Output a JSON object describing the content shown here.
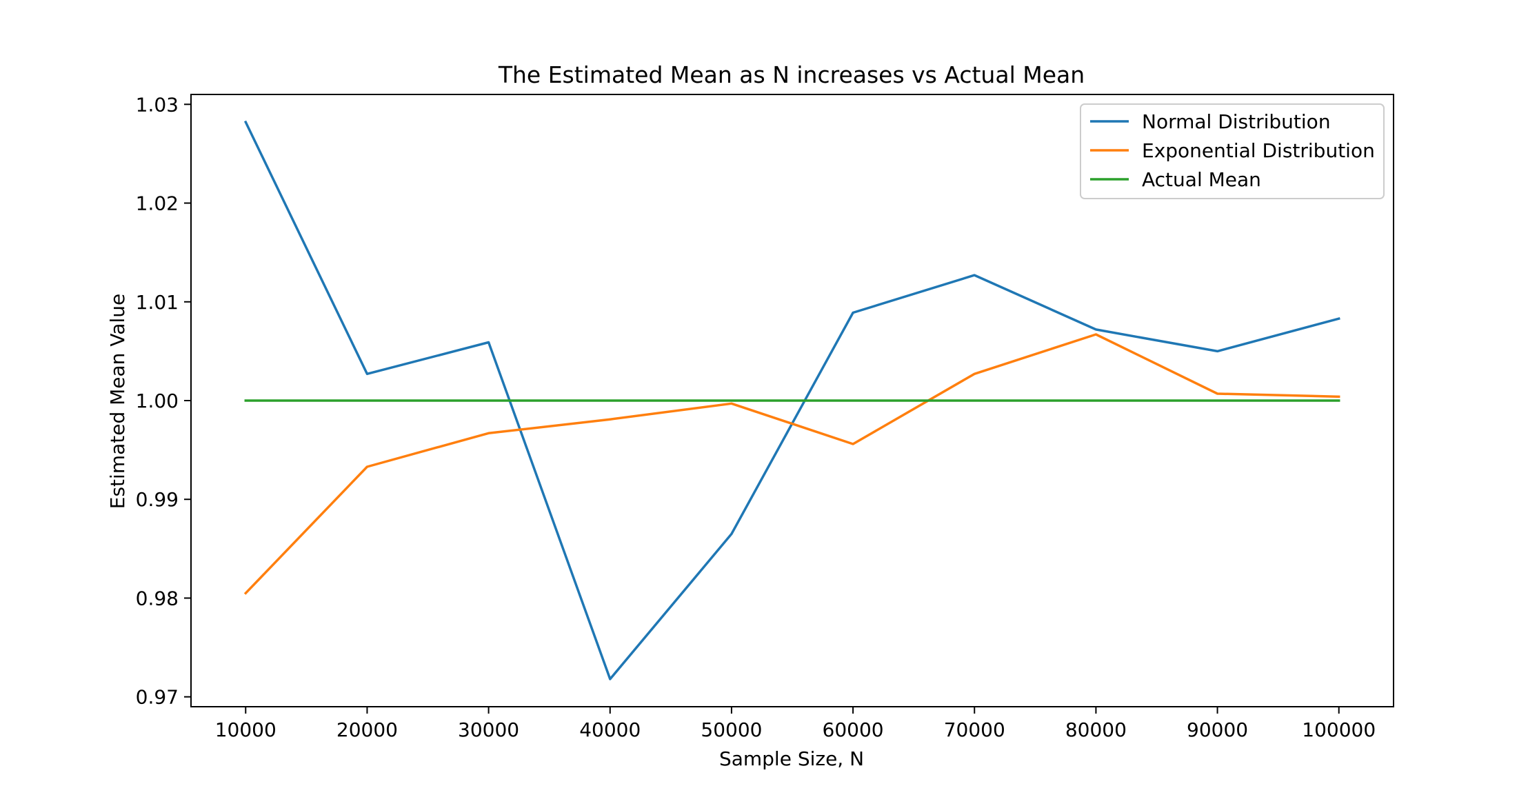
{
  "chart_data": {
    "type": "line",
    "title": "The Estimated Mean as N increases vs Actual Mean",
    "xlabel": "Sample Size, N",
    "ylabel": "Estimated Mean Value",
    "x": [
      10000,
      20000,
      30000,
      40000,
      50000,
      60000,
      70000,
      80000,
      90000,
      100000
    ],
    "x_tick_labels": [
      "10000",
      "20000",
      "30000",
      "40000",
      "50000",
      "60000",
      "70000",
      "80000",
      "90000",
      "100000"
    ],
    "y_ticks": [
      0.97,
      0.98,
      0.99,
      1.0,
      1.01,
      1.02,
      1.03
    ],
    "y_tick_labels": [
      "0.97",
      "0.98",
      "0.99",
      "1.00",
      "1.01",
      "1.02",
      "1.03"
    ],
    "xlim": [
      5500,
      104500
    ],
    "ylim": [
      0.969,
      1.031
    ],
    "grid": false,
    "legend_position": "top-right",
    "series": [
      {
        "name": "Normal Distribution",
        "color": "#1f77b4",
        "values": [
          1.0282,
          1.0027,
          1.0059,
          0.9718,
          0.9865,
          1.0089,
          1.0127,
          1.0072,
          1.005,
          1.0083
        ]
      },
      {
        "name": "Exponential Distribution",
        "color": "#ff7f0e",
        "values": [
          0.9805,
          0.9933,
          0.9967,
          0.9981,
          0.9997,
          0.9956,
          1.0027,
          1.0067,
          1.0007,
          1.0004
        ]
      },
      {
        "name": "Actual Mean",
        "color": "#2ca02c",
        "values": [
          1.0,
          1.0,
          1.0,
          1.0,
          1.0,
          1.0,
          1.0,
          1.0,
          1.0,
          1.0
        ]
      }
    ]
  }
}
